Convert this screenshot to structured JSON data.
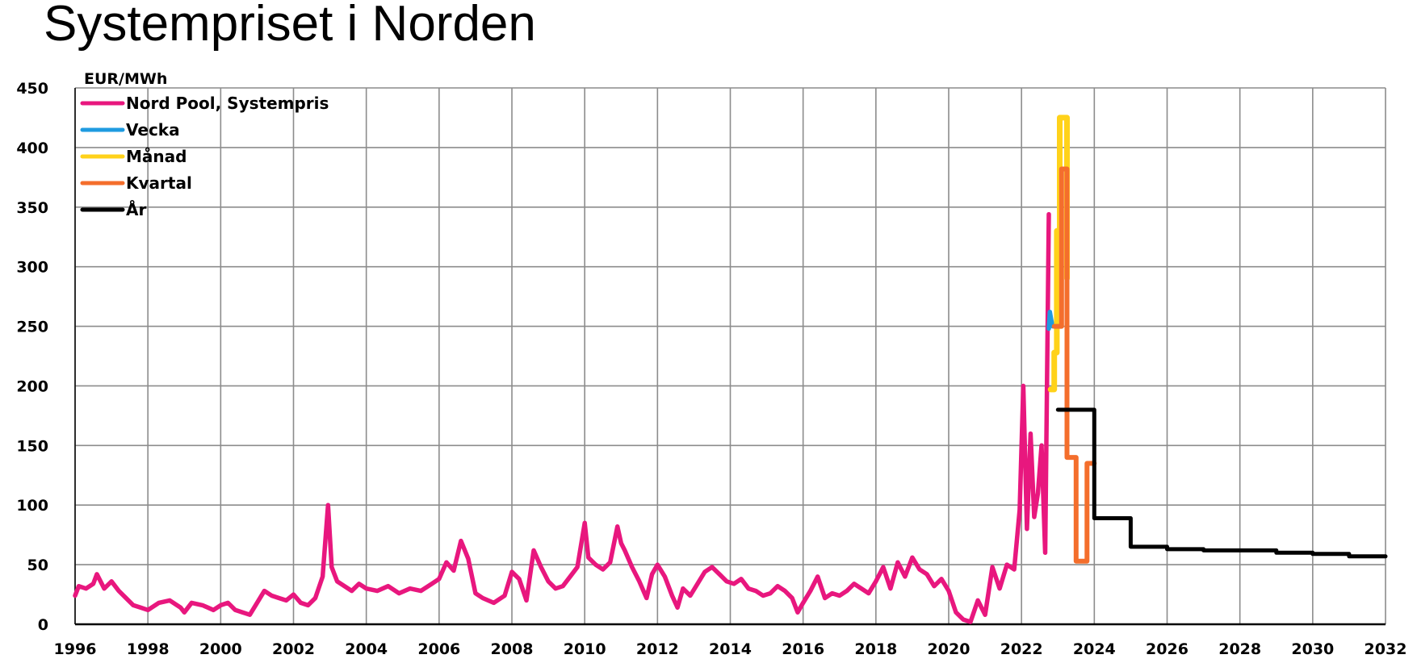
{
  "chart_data": {
    "type": "line",
    "title": "Systempriset i Norden",
    "ylabel": "EUR/MWh",
    "xlabel": "",
    "xlim": [
      1996,
      2032
    ],
    "ylim": [
      0,
      450
    ],
    "grid": true,
    "legend_position": "top-left",
    "x_ticks": [
      "1996",
      "1998",
      "2000",
      "2002",
      "2004",
      "2006",
      "2008",
      "2010",
      "2012",
      "2014",
      "2016",
      "2018",
      "2020",
      "2022",
      "2024",
      "2026",
      "2028",
      "2030",
      "2032"
    ],
    "y_ticks": [
      "0",
      "50",
      "100",
      "150",
      "200",
      "250",
      "300",
      "350",
      "400",
      "450"
    ],
    "series": [
      {
        "name": "Nord Pool, Systempris",
        "color": "#e8177e",
        "x": [
          1996.0,
          1996.1,
          1996.3,
          1996.5,
          1996.6,
          1996.8,
          1997.0,
          1997.2,
          1997.4,
          1997.6,
          1997.8,
          1998.0,
          1998.3,
          1998.6,
          1998.9,
          1999.0,
          1999.2,
          1999.5,
          1999.8,
          2000.0,
          2000.2,
          2000.4,
          2000.6,
          2000.8,
          2001.0,
          2001.2,
          2001.4,
          2001.6,
          2001.8,
          2002.0,
          2002.2,
          2002.4,
          2002.6,
          2002.8,
          2002.95,
          2003.05,
          2003.2,
          2003.4,
          2003.6,
          2003.8,
          2004.0,
          2004.3,
          2004.6,
          2004.9,
          2005.2,
          2005.5,
          2005.8,
          2006.0,
          2006.2,
          2006.4,
          2006.6,
          2006.8,
          2007.0,
          2007.2,
          2007.5,
          2007.8,
          2008.0,
          2008.2,
          2008.4,
          2008.6,
          2008.8,
          2009.0,
          2009.2,
          2009.4,
          2009.6,
          2009.8,
          2010.0,
          2010.1,
          2010.3,
          2010.5,
          2010.7,
          2010.9,
          2011.0,
          2011.1,
          2011.3,
          2011.5,
          2011.7,
          2011.85,
          2012.0,
          2012.2,
          2012.4,
          2012.55,
          2012.7,
          2012.9,
          2013.1,
          2013.3,
          2013.5,
          2013.7,
          2013.9,
          2014.1,
          2014.3,
          2014.5,
          2014.7,
          2014.9,
          2015.1,
          2015.3,
          2015.5,
          2015.7,
          2015.85,
          2016.0,
          2016.2,
          2016.4,
          2016.6,
          2016.8,
          2017.0,
          2017.2,
          2017.4,
          2017.6,
          2017.8,
          2018.0,
          2018.2,
          2018.4,
          2018.6,
          2018.8,
          2019.0,
          2019.2,
          2019.4,
          2019.6,
          2019.8,
          2020.0,
          2020.2,
          2020.4,
          2020.6,
          2020.8,
          2021.0,
          2021.2,
          2021.4,
          2021.6,
          2021.8,
          2021.95,
          2022.05,
          2022.15,
          2022.25,
          2022.35,
          2022.45,
          2022.55,
          2022.65,
          2022.75
        ],
        "values": [
          24,
          32,
          30,
          34,
          42,
          30,
          36,
          28,
          22,
          16,
          14,
          12,
          18,
          20,
          14,
          10,
          18,
          16,
          12,
          16,
          18,
          12,
          10,
          8,
          18,
          28,
          24,
          22,
          20,
          25,
          18,
          16,
          22,
          40,
          100,
          48,
          36,
          32,
          28,
          34,
          30,
          28,
          32,
          26,
          30,
          28,
          34,
          38,
          52,
          45,
          70,
          55,
          26,
          22,
          18,
          24,
          44,
          38,
          20,
          62,
          48,
          36,
          30,
          32,
          40,
          48,
          85,
          56,
          50,
          46,
          52,
          82,
          68,
          62,
          48,
          36,
          22,
          42,
          50,
          40,
          24,
          14,
          30,
          24,
          34,
          44,
          48,
          42,
          36,
          34,
          38,
          30,
          28,
          24,
          26,
          32,
          28,
          22,
          10,
          18,
          28,
          40,
          22,
          26,
          24,
          28,
          34,
          30,
          26,
          36,
          48,
          30,
          52,
          40,
          56,
          46,
          42,
          32,
          38,
          28,
          10,
          4,
          2,
          20,
          8,
          48,
          30,
          50,
          46,
          96,
          200,
          80,
          160,
          90,
          110,
          150,
          60,
          344
        ]
      },
      {
        "name": "Vecka",
        "color": "#1f9be0",
        "x": [
          2022.75,
          2022.78,
          2022.82,
          2022.86
        ],
        "values": [
          248,
          262,
          255,
          250
        ]
      },
      {
        "name": "Månad",
        "color": "#ffd21a",
        "x": [
          2022.8,
          2022.9,
          2022.9,
          2022.97,
          2022.97,
          2023.05,
          2023.05,
          2023.25,
          2023.25
        ],
        "values": [
          197,
          197,
          228,
          228,
          330,
          330,
          425,
          425,
          290
        ]
      },
      {
        "name": "Kvartal",
        "color": "#f46e2c",
        "x": [
          2022.9,
          2023.1,
          2023.1,
          2023.25,
          2023.25,
          2023.5,
          2023.5,
          2023.8,
          2023.8,
          2024.0
        ],
        "values": [
          250,
          250,
          382,
          382,
          140,
          140,
          53,
          53,
          135,
          135
        ]
      },
      {
        "name": "År",
        "color": "#000000",
        "x": [
          2023.0,
          2024.0,
          2024.0,
          2025.0,
          2025.0,
          2026.0,
          2026.0,
          2027.0,
          2027.0,
          2028.0,
          2028.0,
          2029.0,
          2029.0,
          2030.0,
          2030.0,
          2031.0,
          2031.0,
          2032.0
        ],
        "values": [
          180,
          180,
          89,
          89,
          65,
          65,
          63,
          63,
          62,
          62,
          62,
          62,
          60,
          60,
          59,
          59,
          57,
          57
        ]
      }
    ]
  }
}
